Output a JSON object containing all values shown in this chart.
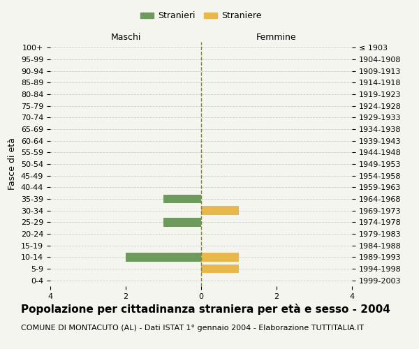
{
  "age_groups": [
    "100+",
    "95-99",
    "90-94",
    "85-89",
    "80-84",
    "75-79",
    "70-74",
    "65-69",
    "60-64",
    "55-59",
    "50-54",
    "45-49",
    "40-44",
    "35-39",
    "30-34",
    "25-29",
    "20-24",
    "15-19",
    "10-14",
    "5-9",
    "0-4"
  ],
  "birth_years": [
    "≤ 1903",
    "1904-1908",
    "1909-1913",
    "1914-1918",
    "1919-1923",
    "1924-1928",
    "1929-1933",
    "1934-1938",
    "1939-1943",
    "1944-1948",
    "1949-1953",
    "1954-1958",
    "1959-1963",
    "1964-1968",
    "1969-1973",
    "1974-1978",
    "1979-1983",
    "1984-1988",
    "1989-1993",
    "1994-1998",
    "1999-2003"
  ],
  "males": [
    0,
    0,
    0,
    0,
    0,
    0,
    0,
    0,
    0,
    0,
    0,
    0,
    0,
    1,
    0,
    1,
    0,
    0,
    2,
    0,
    0
  ],
  "females": [
    0,
    0,
    0,
    0,
    0,
    0,
    0,
    0,
    0,
    0,
    0,
    0,
    0,
    0,
    1,
    0,
    0,
    0,
    1,
    1,
    0
  ],
  "male_color": "#6f9a5e",
  "female_color": "#e8b84b",
  "grid_color": "#cccccc",
  "center_line_color": "#808040",
  "bg_color": "#f5f5f0",
  "xlim": 4,
  "title": "Popolazione per cittadinanza straniera per età e sesso - 2004",
  "subtitle": "COMUNE DI MONTACUTO (AL) - Dati ISTAT 1° gennaio 2004 - Elaborazione TUTTITALIA.IT",
  "ylabel_left": "Fasce di età",
  "xlabel_left": "Maschi",
  "xlabel_right": "Femmine",
  "legend_stranieri": "Stranieri",
  "legend_straniere": "Straniere",
  "title_fontsize": 11,
  "subtitle_fontsize": 8,
  "tick_fontsize": 8,
  "label_fontsize": 9
}
